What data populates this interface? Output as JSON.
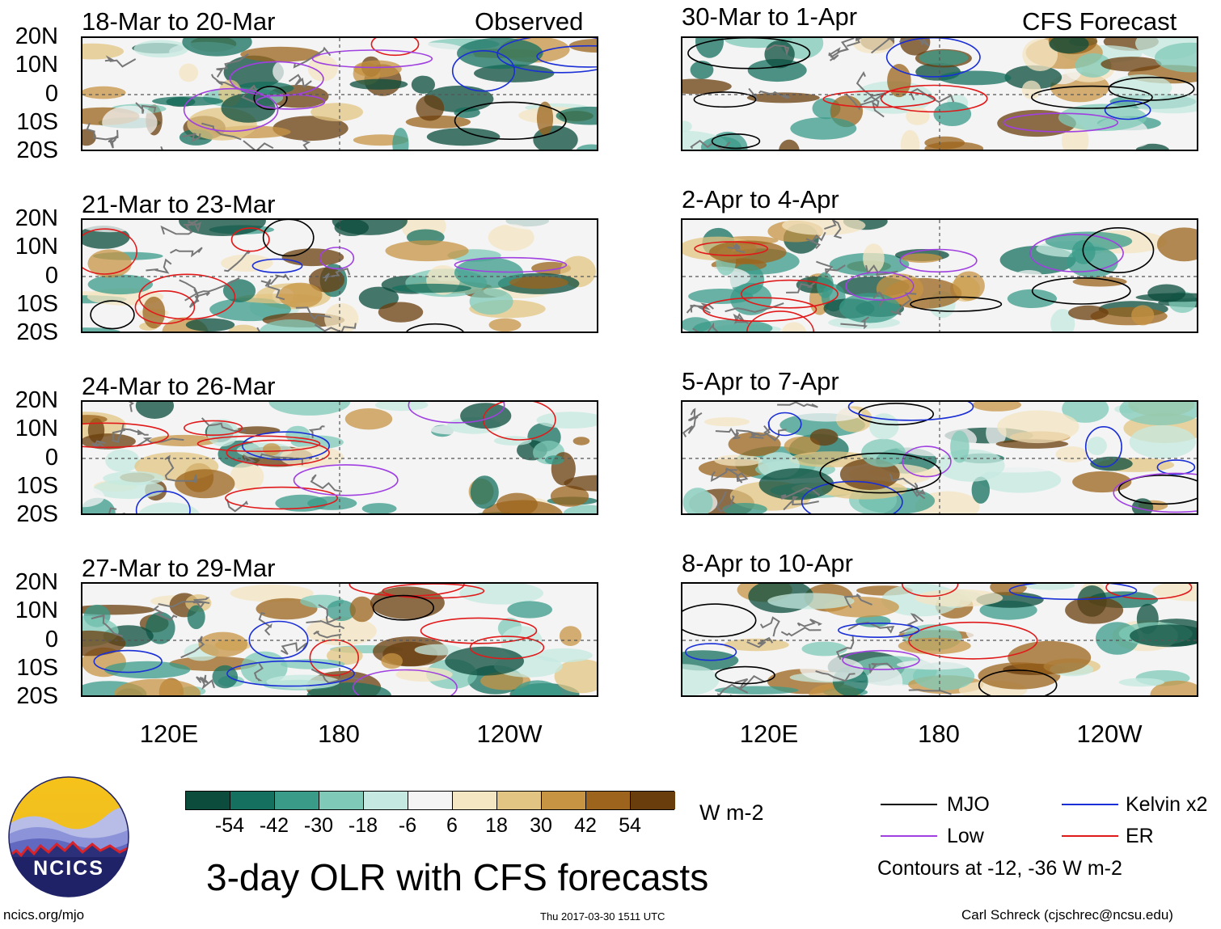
{
  "header": {
    "left_label": "Observed",
    "right_label": "CFS Forecast"
  },
  "panels": {
    "left": [
      {
        "title": "18-Mar to 20-Mar"
      },
      {
        "title": "21-Mar to 23-Mar"
      },
      {
        "title": "24-Mar to 26-Mar"
      },
      {
        "title": "27-Mar to 29-Mar"
      }
    ],
    "right": [
      {
        "title": "30-Mar to 1-Apr"
      },
      {
        "title": "2-Apr to 4-Apr"
      },
      {
        "title": "5-Apr to 7-Apr"
      },
      {
        "title": "8-Apr to 10-Apr"
      }
    ]
  },
  "axes": {
    "lat_labels": [
      "20N",
      "10N",
      "0",
      "10S",
      "20S"
    ],
    "lon_labels": [
      "120E",
      "180",
      "120W"
    ]
  },
  "colorbar": {
    "colors": [
      "#0b4c3c",
      "#15705f",
      "#3a9b89",
      "#7fc9b8",
      "#c5e9e0",
      "#f4f4f4",
      "#f4e6c3",
      "#e3c583",
      "#c79444",
      "#9c641c",
      "#6a3d0d"
    ],
    "ticks": [
      "-54",
      "-42",
      "-30",
      "-18",
      "-6",
      "6",
      "18",
      "30",
      "42",
      "54"
    ],
    "units": "W m-2"
  },
  "legend": {
    "items": [
      {
        "label": "MJO",
        "color": "#000000"
      },
      {
        "label": "Kelvin x2",
        "color": "#1a2fd6"
      },
      {
        "label": "Low",
        "color": "#a040e0"
      },
      {
        "label": "ER",
        "color": "#e01a1a"
      }
    ],
    "note": "Contours at -12, -36 W m-2"
  },
  "main_title": "3-day OLR with CFS forecasts",
  "logo_text": "NCICS",
  "footer": {
    "url": "ncics.org/mjo",
    "timestamp": "Thu 2017-03-30 1511 UTC",
    "credit": "Carl Schreck (cjschrec@ncsu.edu)"
  }
}
